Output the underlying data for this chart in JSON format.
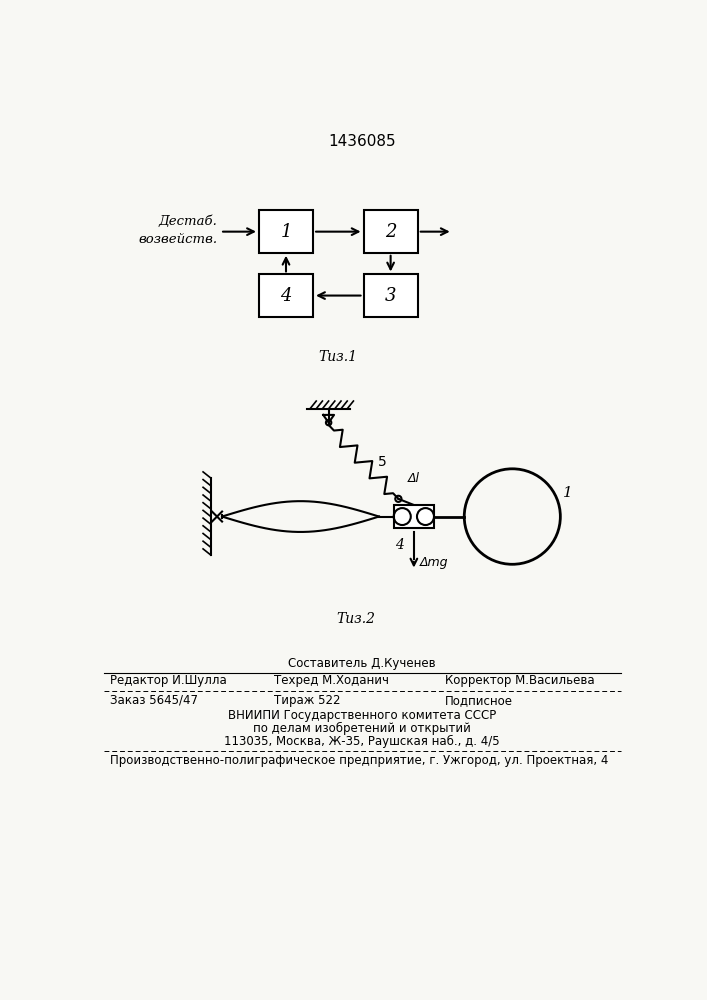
{
  "title": "1436085",
  "fig1_caption": "Τиз.1",
  "fig2_caption": "Τиз.2",
  "destab_label_line1": "Дестаб.",
  "destab_label_line2": "возвейств.",
  "spring_label": "5",
  "delta_l_label": "Δl",
  "node_label_1": "1",
  "node_label_4": "4",
  "deltamg_label": "Δmg",
  "editor_line": "Редактор И.Шулла",
  "composer_line": "Составитель Д.Кученев",
  "tekhred_line": "Техред М.Ходанич",
  "corrector_line": "Корректор М.Васильева",
  "order_line": "Заказ 5645/47",
  "tirazh_line": "Тираж 522",
  "podpisnoe_line": "Подписное",
  "vniipii_line": "ВНИИПИ Государственного комитета СССР",
  "podel_line": "по делам изобретений и открытий",
  "address_line": "113035, Москва, Ж-35, Раушская наб., д. 4/5",
  "factory_line": "Производственно-полиграфическое предприятие, г. Ужгород, ул. Проектная, 4",
  "bg_color": "#f8f8f4"
}
